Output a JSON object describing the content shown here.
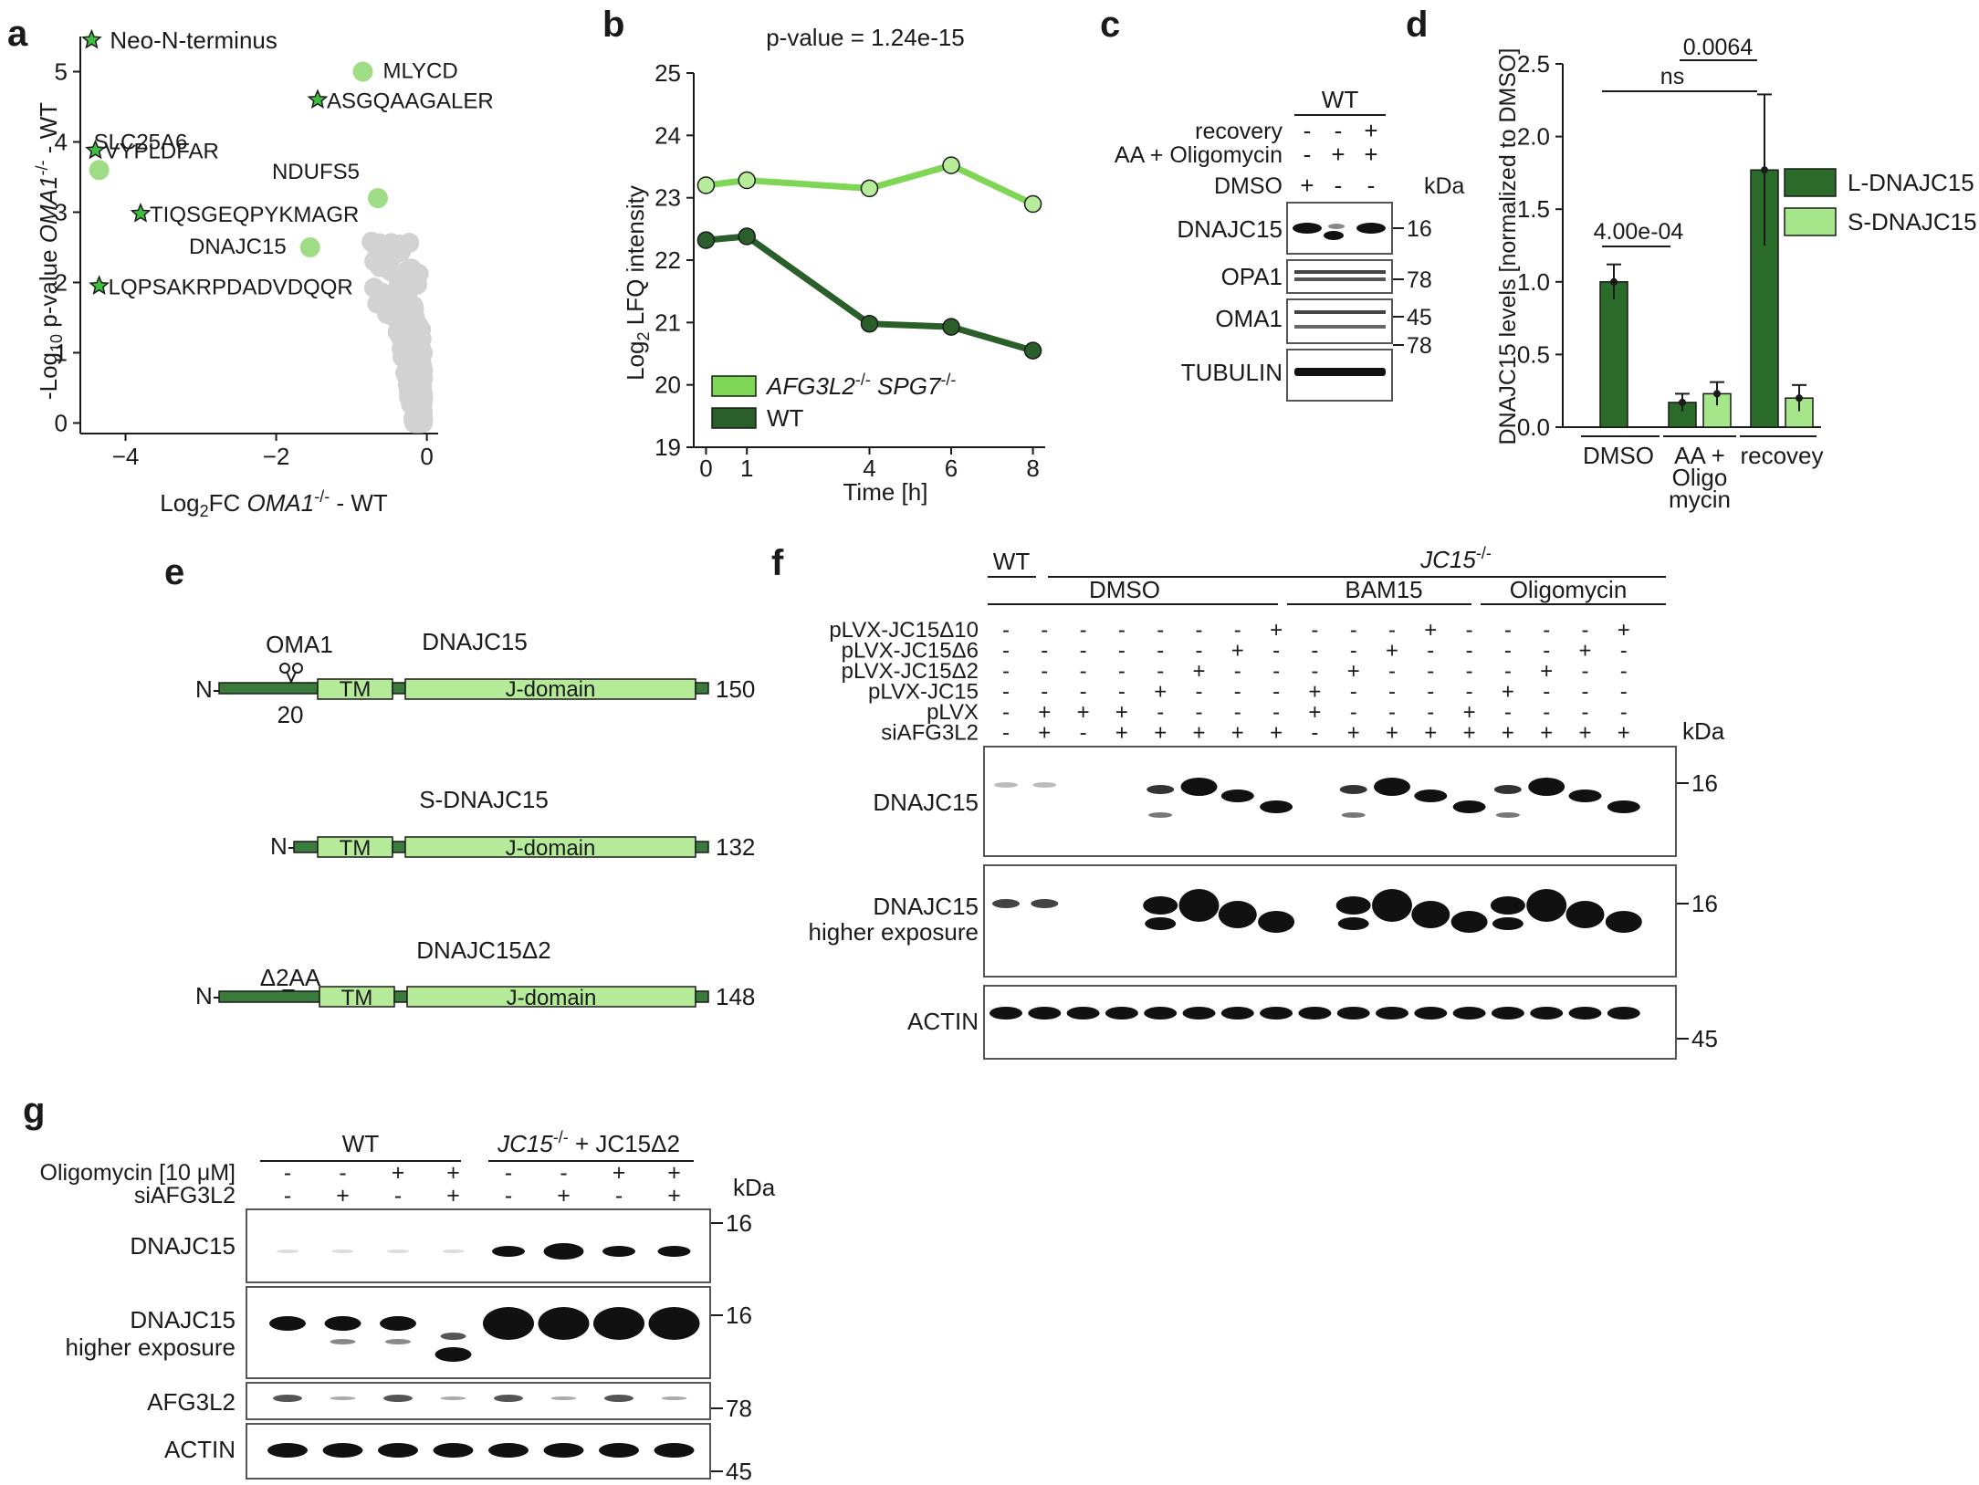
{
  "panels": {
    "a": {
      "letter": "a",
      "xlabel_pre": "Log",
      "xlabel_sub": "2",
      "xlabel_mid": "FC ",
      "xlabel_ital": "OMA1",
      "xlabel_sup": "-/-",
      "xlabel_post": " - WT",
      "ylabel_pre": "-Log",
      "ylabel_sub": "10",
      "ylabel_mid": " p-value ",
      "ylabel_ital": "OMA1",
      "ylabel_sup": "-/-",
      "ylabel_post": " - WT",
      "legend_star_label": "Neo-N-terminus",
      "colors": {
        "star": "#3fbf3f",
        "highlight": "#9fdc86",
        "bulk": "#d2d2d2"
      }
    },
    "b": {
      "letter": "b",
      "title": "p-value = 1.24e-15",
      "ylabel_pre": "Log",
      "ylabel_sub": "2",
      "ylabel_post": " LFQ intensity",
      "xlabel": "Time [h]",
      "legend_mut_1": "AFG3L2",
      "legend_mut_sup1": "-/-",
      "legend_mut_2": " SPG7",
      "legend_mut_sup2": "-/-",
      "legend_wt": "WT",
      "colors": {
        "mutant": "#7fd654",
        "wt": "#2a5e2a"
      }
    },
    "c": {
      "letter": "c",
      "wt_label": "WT",
      "row_labels": [
        "recovery",
        "AA + Oligomycin",
        "DMSO"
      ],
      "signs": [
        [
          "-",
          "-",
          "+"
        ],
        [
          "-",
          "+",
          "+"
        ],
        [
          "+",
          "-",
          "-"
        ]
      ],
      "kda": "kDa",
      "blots": [
        "DNAJC15",
        "OPA1",
        "OMA1",
        "TUBULIN"
      ],
      "markers": [
        "16",
        "78",
        "45",
        "78"
      ]
    },
    "d": {
      "letter": "d",
      "ylabel": "DNAJC15 levels [normalized to DMSO]",
      "groups": [
        "DMSO",
        "AA +",
        "Oligo",
        "mycin",
        "recovey"
      ],
      "stat_1": "4.00e-04",
      "stat_2": "ns",
      "stat_3": "0.0064",
      "legend": [
        "L-DNAJC15",
        "S-DNAJC15"
      ],
      "colors": {
        "long": "#2a6b2a",
        "short": "#a6e68a"
      }
    },
    "e": {
      "letter": "e",
      "scissor_label": "OMA1",
      "cleave_pos": "20",
      "constructs": [
        {
          "name": "DNAJC15",
          "n": "N-",
          "tm": "TM",
          "jd": "J-domain",
          "end": "150"
        },
        {
          "name": "S-DNAJC15",
          "n": "N-",
          "tm": "TM",
          "jd": "J-domain",
          "end": "132"
        },
        {
          "name": "DNAJC15Δ2",
          "n": "N-",
          "tm": "TM",
          "jd": "J-domain",
          "end": "148",
          "mark": "Δ2AA"
        }
      ],
      "colors": {
        "dark": "#3a7a3a",
        "light": "#b4ea98"
      }
    },
    "f": {
      "letter": "f",
      "wt": "WT",
      "ko_base": "JC15",
      "ko_sup": "-/-",
      "conds": [
        "DMSO",
        "BAM15",
        "Oligomycin"
      ],
      "rows": [
        {
          "label": "pLVX-JC15Δ10",
          "signs": [
            "-",
            "-",
            "-",
            "-",
            "-",
            "-",
            "-",
            "+",
            "-",
            "-",
            "-",
            "+",
            "-",
            "-",
            "-",
            "-",
            "+"
          ]
        },
        {
          "label": "pLVX-JC15Δ6",
          "signs": [
            "-",
            "-",
            "-",
            "-",
            "-",
            "-",
            "+",
            "-",
            "-",
            "-",
            "+",
            "-",
            "-",
            "-",
            "-",
            "+",
            "-"
          ]
        },
        {
          "label": "pLVX-JC15Δ2",
          "signs": [
            "-",
            "-",
            "-",
            "-",
            "-",
            "+",
            "-",
            "-",
            "-",
            "+",
            "-",
            "-",
            "-",
            "-",
            "+",
            "-",
            "-"
          ]
        },
        {
          "label": "pLVX-JC15",
          "signs": [
            "-",
            "-",
            "-",
            "-",
            "+",
            "-",
            "-",
            "-",
            "+",
            "-",
            "-",
            "-",
            "-",
            "+",
            "-",
            "-",
            "-"
          ]
        },
        {
          "label": "pLVX",
          "signs": [
            "-",
            "+",
            "+",
            "+",
            "-",
            "-",
            "-",
            "-",
            "+",
            "-",
            "-",
            "-",
            "+",
            "-",
            "-",
            "-",
            "-"
          ]
        },
        {
          "label": "siAFG3L2",
          "signs": [
            "-",
            "+",
            "-",
            "+",
            "+",
            "+",
            "+",
            "+",
            "-",
            "+",
            "+",
            "+",
            "+",
            "+",
            "+",
            "+",
            "+"
          ]
        }
      ],
      "kda": "kDa",
      "blots": [
        "DNAJC15",
        "DNAJC15",
        "higher exposure",
        "ACTIN"
      ],
      "markers": [
        "16",
        "16",
        "45"
      ]
    },
    "g": {
      "letter": "g",
      "wt": "WT",
      "ko_base": "JC15",
      "ko_sup": "-/-",
      "ko_post": " + JC15Δ2",
      "rows": [
        {
          "label": "Oligomycin [10 μM]",
          "signs": [
            "-",
            "-",
            "+",
            "+",
            "-",
            "-",
            "+",
            "+"
          ]
        },
        {
          "label": "siAFG3L2",
          "signs": [
            "-",
            "+",
            "-",
            "+",
            "-",
            "+",
            "-",
            "+"
          ]
        }
      ],
      "kda": "kDa",
      "blots": [
        "DNAJC15",
        "DNAJC15",
        "higher exposure",
        "AFG3L2",
        "ACTIN"
      ],
      "markers": [
        "16",
        "16",
        "78",
        "45"
      ]
    }
  },
  "chart_data": [
    {
      "type": "scatter",
      "panel": "a",
      "xlabel": "Log2FC OMA1-/- - WT",
      "ylabel": "-Log10 p-value OMA1-/- - WT",
      "xticks": [
        -4,
        -2,
        0
      ],
      "yticks": [
        0,
        1,
        2,
        3,
        4,
        5
      ],
      "xlim": [
        -4.6,
        0.15
      ],
      "ylim": [
        -0.15,
        5.5
      ],
      "series": [
        {
          "name": "Neo-N-terminus",
          "marker": "star",
          "points": [
            {
              "label": "",
              "x": -4.45,
              "y": 5.45
            },
            {
              "label": "ASGQAAGALER",
              "x": -1.45,
              "y": 4.6
            },
            {
              "label": "VYPLDFAR",
              "x": -4.4,
              "y": 3.88
            },
            {
              "label": "TIQSGEQPYKMAGR",
              "x": -3.8,
              "y": 2.98
            },
            {
              "label": "LQPSAKRPDADVDQQR",
              "x": -4.35,
              "y": 1.95
            }
          ]
        },
        {
          "marker": "circle-highlight",
          "points": [
            {
              "label": "MLYCD",
              "x": -0.85,
              "y": 5.0
            },
            {
              "label": "SLC25A6",
              "x": -4.35,
              "y": 3.6
            },
            {
              "label": "NDUFS5",
              "x": -0.65,
              "y": 3.2
            },
            {
              "label": "DNAJC15",
              "x": -1.55,
              "y": 2.5
            }
          ]
        }
      ]
    },
    {
      "type": "line",
      "panel": "b",
      "title": "p-value = 1.24e-15",
      "xlabel": "Time [h]",
      "ylabel": "Log2 LFQ intensity",
      "x": [
        0,
        1,
        4,
        6,
        8
      ],
      "xlim": [
        -0.3,
        8.3
      ],
      "ylim": [
        19,
        25
      ],
      "series": [
        {
          "name": "AFG3L2-/- SPG7-/-",
          "values": [
            23.2,
            23.28,
            23.15,
            23.52,
            22.9
          ]
        },
        {
          "name": "WT",
          "values": [
            22.32,
            22.38,
            20.98,
            20.93,
            20.55
          ]
        }
      ]
    },
    {
      "type": "bar",
      "panel": "d",
      "ylabel": "DNAJC15 levels [normalized to DMSO]",
      "categories": [
        "DMSO",
        "AA + Oligo mycin",
        "recovey"
      ],
      "ylim": [
        0,
        2.5
      ],
      "yticks": [
        0.0,
        0.5,
        1.0,
        1.5,
        2.0,
        2.5
      ],
      "series": [
        {
          "name": "L-DNAJC15",
          "values": [
            1.0,
            0.17,
            1.77
          ],
          "errors": [
            0.12,
            0.06,
            0.52
          ]
        },
        {
          "name": "S-DNAJC15",
          "values": [
            null,
            0.23,
            0.2
          ],
          "errors": [
            null,
            0.08,
            0.09
          ]
        }
      ],
      "annotations": [
        "4.00e-04",
        "ns",
        "0.0064"
      ]
    }
  ]
}
